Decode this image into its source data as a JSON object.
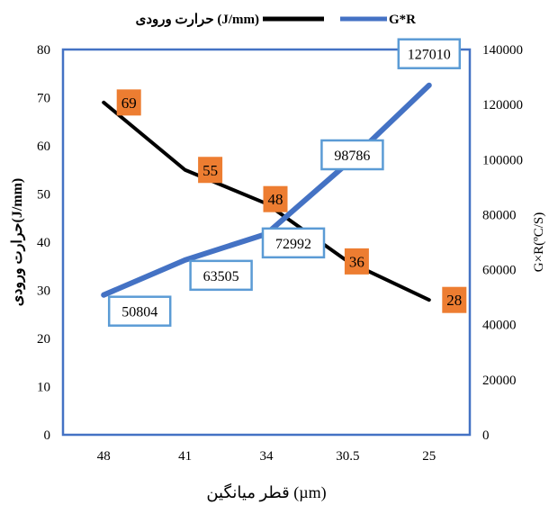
{
  "chart_data": {
    "type": "line",
    "categories": [
      "48",
      "41",
      "34",
      "30.5",
      "25"
    ],
    "xlabel": "قطر میانگین (µm)",
    "ylabel_left": "حرارت ورودی(J/mm)",
    "ylabel_right": "G×R(ºC/S)",
    "ylim_left": [
      0,
      80
    ],
    "ylim_right": [
      0,
      140000
    ],
    "yticks_left": [
      0,
      10,
      20,
      30,
      40,
      50,
      60,
      70,
      80
    ],
    "yticks_right": [
      0,
      20000,
      40000,
      60000,
      80000,
      100000,
      120000,
      140000
    ],
    "legend_position": "top",
    "grid": false,
    "series": [
      {
        "name": "حرارت ورودی (J/mm)",
        "axis": "left",
        "color": "#000000",
        "values": [
          69,
          55,
          48,
          36,
          28
        ],
        "labels": [
          "69",
          "55",
          "48",
          "36",
          "28"
        ],
        "label_color": "#ED7D31"
      },
      {
        "name": "G*R",
        "axis": "right",
        "color": "#4472C4",
        "values": [
          50804,
          63505,
          72992,
          98786,
          127010
        ],
        "labels": [
          "50804",
          "63505",
          "72992",
          "98786",
          "127010"
        ],
        "label_color": "#5B9BD5"
      }
    ]
  }
}
